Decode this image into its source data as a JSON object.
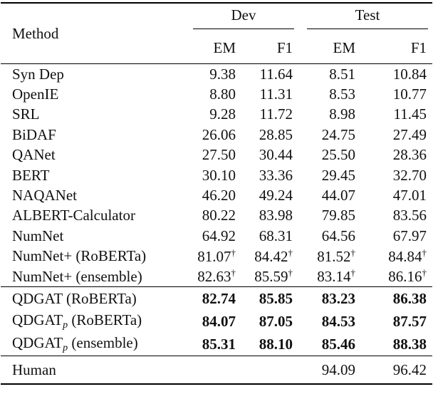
{
  "table": {
    "header": {
      "method": "Method",
      "groups": [
        "Dev",
        "Test"
      ],
      "columns": [
        "EM",
        "F1",
        "EM",
        "F1"
      ]
    },
    "sections": [
      {
        "bold": false,
        "rows": [
          {
            "method": "Syn Dep",
            "cells": [
              "9.38",
              "11.64",
              "8.51",
              "10.84"
            ]
          },
          {
            "method": "OpenIE",
            "cells": [
              "8.80",
              "11.31",
              "8.53",
              "10.77"
            ]
          },
          {
            "method": "SRL",
            "cells": [
              "9.28",
              "11.72",
              "8.98",
              "11.45"
            ]
          },
          {
            "method": "BiDAF",
            "cells": [
              "26.06",
              "28.85",
              "24.75",
              "27.49"
            ]
          },
          {
            "method": "QANet",
            "cells": [
              "27.50",
              "30.44",
              "25.50",
              "28.36"
            ]
          },
          {
            "method": "BERT",
            "cells": [
              "30.10",
              "33.36",
              "29.45",
              "32.70"
            ]
          },
          {
            "method": "NAQANet",
            "cells": [
              "46.20",
              "49.24",
              "44.07",
              "47.01"
            ]
          },
          {
            "method": "ALBERT-Calculator",
            "cells": [
              "80.22",
              "83.98",
              "79.85",
              "83.56"
            ]
          },
          {
            "method": "NumNet",
            "cells": [
              "64.92",
              "68.31",
              "64.56",
              "67.97"
            ]
          },
          {
            "method": "NumNet+ (RoBERTa)",
            "cells": [
              {
                "base": "81.07",
                "sup": "†"
              },
              {
                "base": "84.42",
                "sup": "†"
              },
              {
                "base": "81.52",
                "sup": "†"
              },
              {
                "base": "84.84",
                "sup": "†"
              }
            ]
          },
          {
            "method": "NumNet+ (ensemble)",
            "cells": [
              {
                "base": "82.63",
                "sup": "†"
              },
              {
                "base": "85.59",
                "sup": "†"
              },
              {
                "base": "83.14",
                "sup": "†"
              },
              {
                "base": "86.16",
                "sup": "†"
              }
            ]
          }
        ]
      },
      {
        "bold": true,
        "rows": [
          {
            "method": "QDGAT (RoBERTa)",
            "cells": [
              "82.74",
              "85.85",
              "83.23",
              "86.38"
            ]
          },
          {
            "method": {
              "base": "QDGAT",
              "sub": "p",
              "tail": " (RoBERTa)"
            },
            "cells": [
              "84.07",
              "87.05",
              "84.53",
              "87.57"
            ]
          },
          {
            "method": {
              "base": "QDGAT",
              "sub": "p",
              "tail": " (ensemble)"
            },
            "cells": [
              "85.31",
              "88.10",
              "85.46",
              "88.38"
            ]
          }
        ]
      },
      {
        "bold": false,
        "rows": [
          {
            "method": "Human",
            "cells": [
              null,
              null,
              "94.09",
              "96.42"
            ]
          }
        ]
      }
    ]
  }
}
